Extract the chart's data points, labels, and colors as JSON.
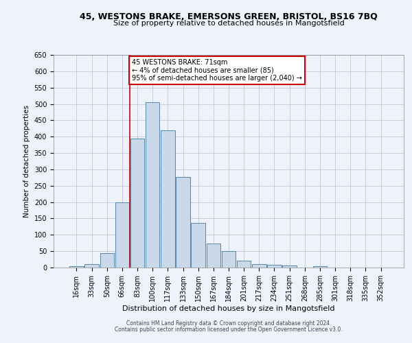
{
  "title_line1": "45, WESTONS BRAKE, EMERSONS GREEN, BRISTOL, BS16 7BQ",
  "title_line2": "Size of property relative to detached houses in Mangotsfield",
  "xlabel": "Distribution of detached houses by size in Mangotsfield",
  "ylabel": "Number of detached properties",
  "bar_labels": [
    "16sqm",
    "33sqm",
    "50sqm",
    "66sqm",
    "83sqm",
    "100sqm",
    "117sqm",
    "133sqm",
    "150sqm",
    "167sqm",
    "184sqm",
    "201sqm",
    "217sqm",
    "234sqm",
    "251sqm",
    "268sqm",
    "285sqm",
    "301sqm",
    "318sqm",
    "335sqm",
    "352sqm"
  ],
  "bar_values": [
    5,
    11,
    45,
    200,
    395,
    505,
    420,
    277,
    137,
    74,
    51,
    20,
    11,
    9,
    6,
    0,
    5,
    0,
    0,
    0,
    0
  ],
  "bar_color": "#c9d9ea",
  "bar_edge_color": "#5588aa",
  "vline_x": 3.5,
  "vline_color": "#cc0000",
  "annotation_line1": "45 WESTONS BRAKE: 71sqm",
  "annotation_line2": "← 4% of detached houses are smaller (85)",
  "annotation_line3": "95% of semi-detached houses are larger (2,040) →",
  "annotation_box_facecolor": "#ffffff",
  "annotation_box_edgecolor": "#cc0000",
  "ylim_min": 0,
  "ylim_max": 650,
  "yticks": [
    0,
    50,
    100,
    150,
    200,
    250,
    300,
    350,
    400,
    450,
    500,
    550,
    600,
    650
  ],
  "footer_line1": "Contains HM Land Registry data © Crown copyright and database right 2024.",
  "footer_line2": "Contains public sector information licensed under the Open Government Licence v3.0.",
  "bg_color": "#eef2fa",
  "grid_color": "#b0b8d0",
  "title1_fontsize": 9.0,
  "title2_fontsize": 8.0,
  "xlabel_fontsize": 8.0,
  "ylabel_fontsize": 7.5,
  "tick_fontsize": 7.0,
  "annotation_fontsize": 7.0,
  "footer_fontsize": 5.5
}
